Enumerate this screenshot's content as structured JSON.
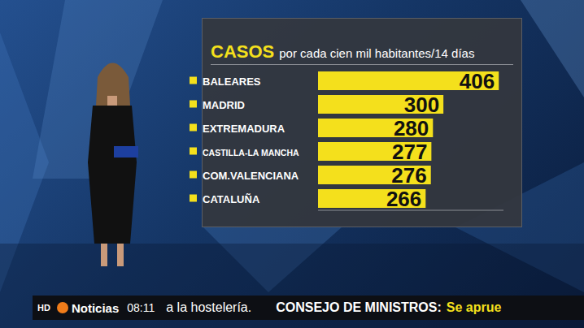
{
  "chart_data": {
    "type": "bar",
    "orientation": "horizontal",
    "title": "CASOS",
    "subtitle": "por cada cien mil habitantes/14 días",
    "categories": [
      "BALEARES",
      "MADRID",
      "EXTREMADURA",
      "CASTILLA-LA MANCHA",
      "COM.VALENCIANA",
      "CATALUÑA"
    ],
    "values": [
      406,
      300,
      280,
      277,
      276,
      266
    ],
    "color": "#f4e01c",
    "xlim": [
      60,
      415
    ],
    "data_labels": true,
    "tick_labels": "y",
    "grid": false
  },
  "ticker": {
    "badge": "HD",
    "channel": "Noticias",
    "time": "08:11",
    "headline": "a la hostelería.",
    "next_label": "CONSEJO DE MINISTROS:",
    "next_text": "Se aprue"
  }
}
